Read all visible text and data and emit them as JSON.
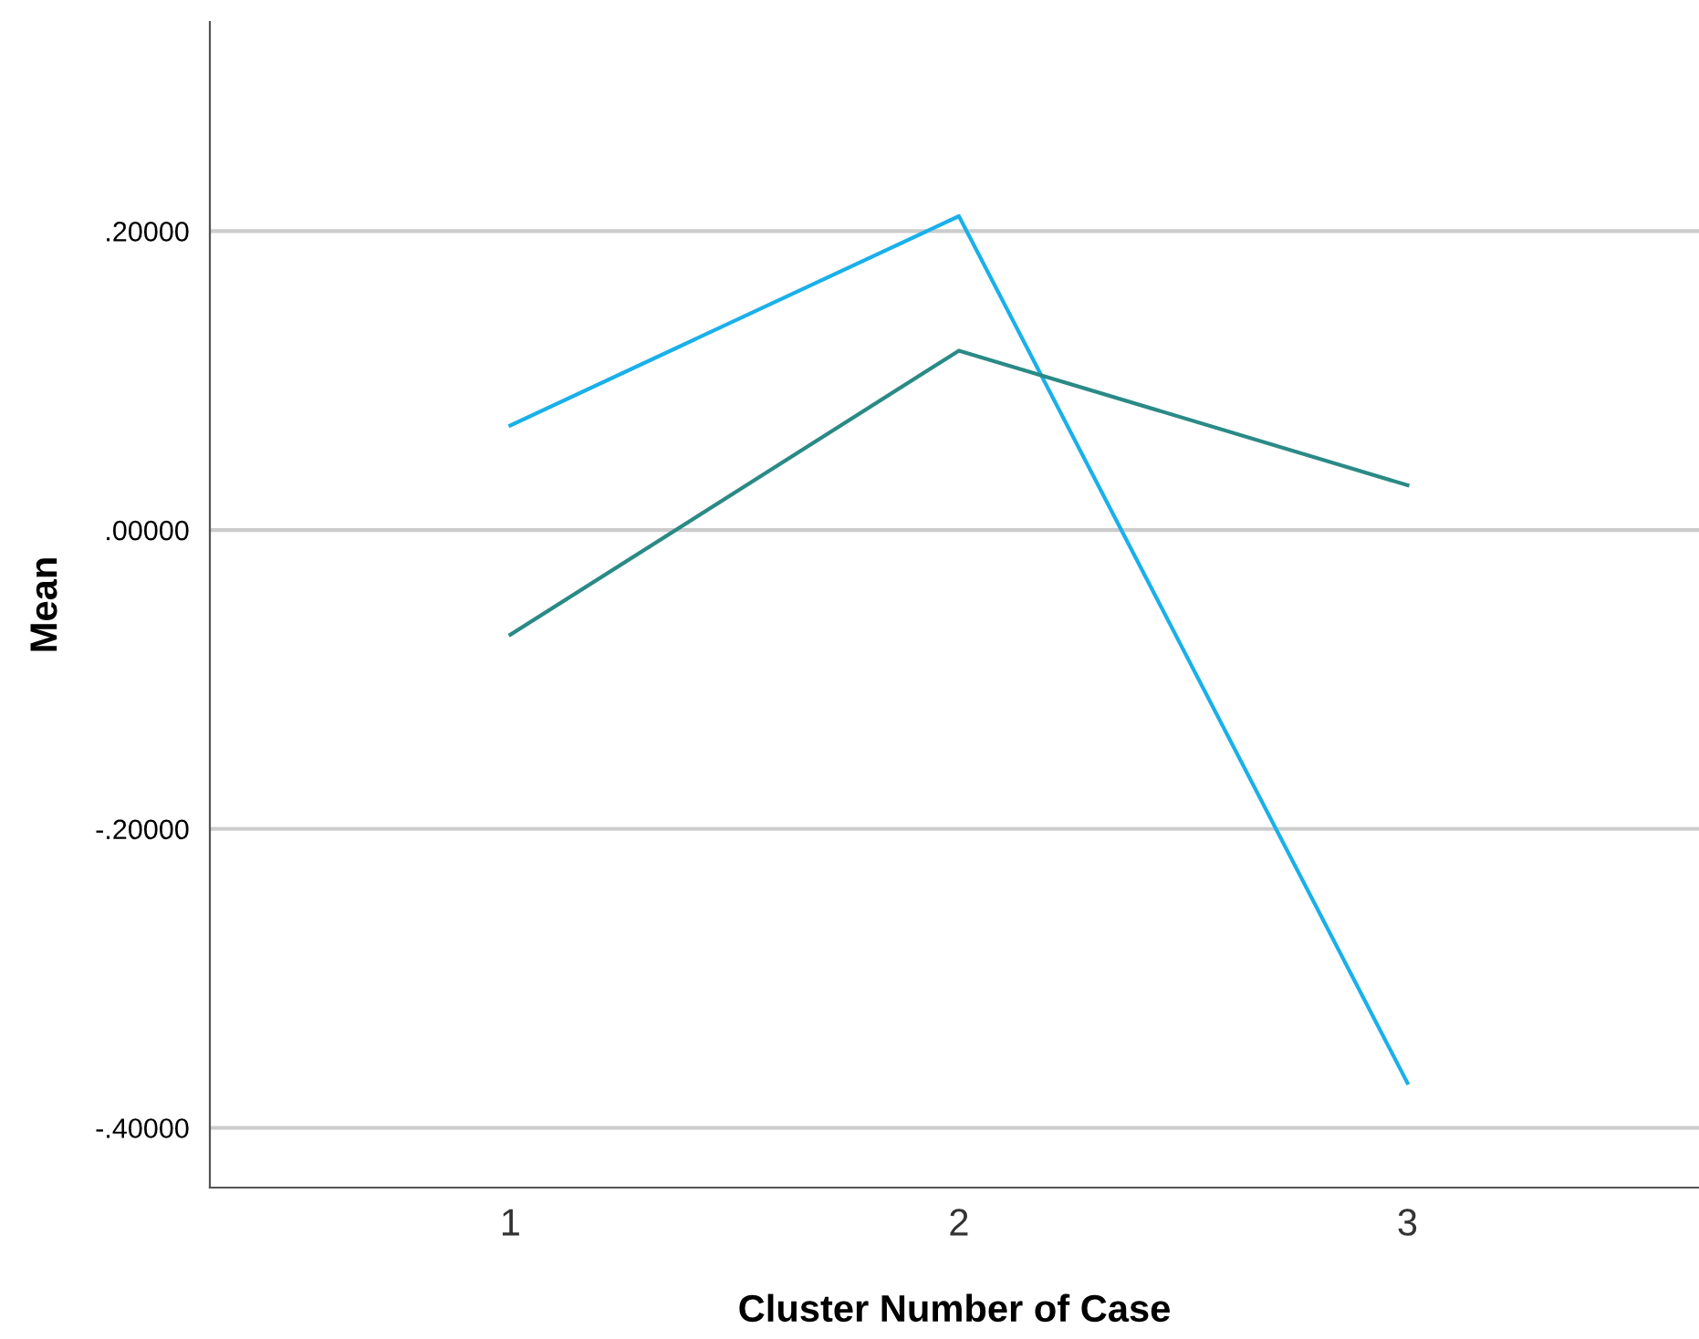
{
  "chart_data": {
    "type": "line",
    "xlabel": "Cluster Number of Case",
    "ylabel": "Mean",
    "categories": [
      "1",
      "2",
      "3"
    ],
    "series": [
      {
        "color": "#1ab0ea",
        "values": [
          0.07,
          0.21,
          -0.37
        ]
      },
      {
        "color": "#2a8a86",
        "values": [
          -0.07,
          0.12,
          0.03
        ]
      }
    ],
    "ylim": [
      -0.44,
      0.34
    ],
    "yticks": [
      {
        "value": -0.4,
        "label": "-.40000"
      },
      {
        "value": -0.2,
        "label": "-.20000"
      },
      {
        "value": 0,
        "label": ".00000"
      },
      {
        "value": 0.2,
        "label": ".20000"
      }
    ],
    "grid": "y",
    "marker": "none",
    "line_style": "solid"
  }
}
